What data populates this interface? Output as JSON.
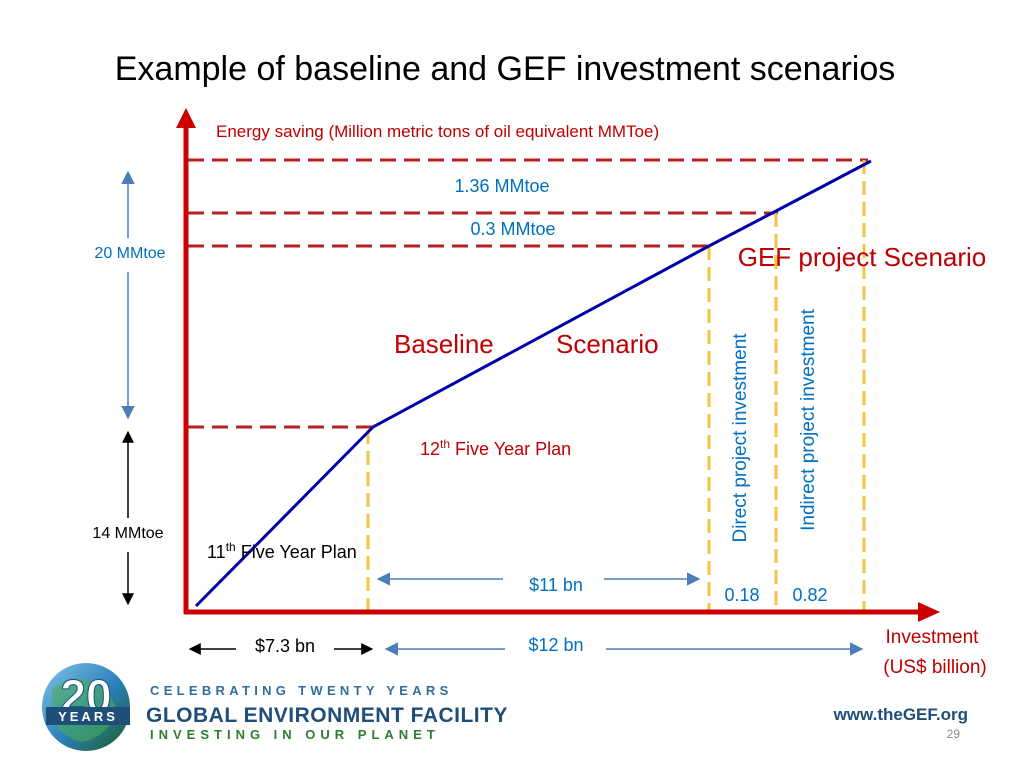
{
  "slide": {
    "title": "Example of baseline and GEF investment scenarios",
    "page_number": "29"
  },
  "chart_data": {
    "type": "line",
    "ylabel": "Energy saving (Million metric tons of oil equivalent  MMToe)",
    "xlabel_line1": "Investment",
    "xlabel_line2": "(US$ billion)",
    "series": [
      {
        "name": "Baseline Scenario",
        "x": [
          0,
          7.3,
          18.3
        ],
        "y": [
          0,
          14,
          34
        ]
      },
      {
        "name": "GEF project Scenario",
        "x": [
          18.3,
          21.3,
          24.3
        ],
        "y": [
          34,
          34.3,
          35.36
        ]
      }
    ],
    "annotations": {
      "gef_scenario": "GEF project Scenario",
      "baseline_word1": "Baseline",
      "baseline_word2": "Scenario",
      "plan11_base": "11",
      "plan11_sup": "th",
      "plan11_rest": " Five Year Plan",
      "plan12_base": "12",
      "plan12_sup": "th",
      "plan12_rest": " Five Year Plan",
      "direct": "Direct project investment",
      "indirect": "Indirect project investment",
      "y_top": "1.36 MMtoe",
      "y_mid": "0.3 MMtoe",
      "y_20": "20  MMtoe",
      "y_14": "14 MMtoe",
      "x_73": "$7.3 bn",
      "x_11": "$11 bn",
      "x_12": "$12 bn",
      "x_018": "0.18",
      "x_082": "0.82"
    },
    "colors": {
      "axis": "#cc0000",
      "line": "#0000aa",
      "dash_h": "#b22222",
      "dash_v": "#f5c242",
      "blue_text": "#0070c0",
      "arrow_blue": "#4a7ebb",
      "red_text": "#c00000"
    }
  },
  "footer": {
    "years_number": "20",
    "years_label": "YEARS",
    "celebrating": "CELEBRATING TWENTY YEARS",
    "org_name": "GLOBAL ENVIRONMENT FACILITY",
    "tagline": "INVESTING IN OUR PLANET",
    "website": "www.theGEF.org"
  }
}
